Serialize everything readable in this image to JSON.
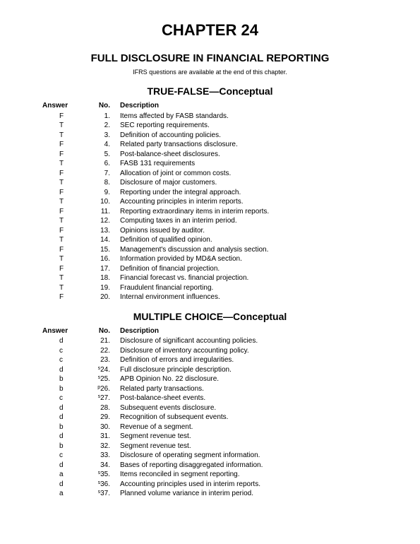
{
  "chapter_title": "CHAPTER 24",
  "subtitle": "FULL DISCLOSURE IN FINANCIAL REPORTING",
  "note": "IFRS questions are available at the end of this chapter.",
  "section1": {
    "title": "TRUE-FALSE—Conceptual",
    "header": {
      "ans": "Answer",
      "no": "No.",
      "desc": "Description"
    },
    "rows": [
      {
        "ans": "F",
        "no": "1.",
        "desc": "Items affected by FASB standards."
      },
      {
        "ans": "T",
        "no": "2.",
        "desc": "SEC reporting requirements."
      },
      {
        "ans": "T",
        "no": "3.",
        "desc": "Definition of accounting policies."
      },
      {
        "ans": "F",
        "no": "4.",
        "desc": "Related party transactions disclosure."
      },
      {
        "ans": "F",
        "no": "5.",
        "desc": "Post-balance-sheet disclosures."
      },
      {
        "ans": "T",
        "no": "6.",
        "desc": "FASB 131 requirements"
      },
      {
        "ans": "F",
        "no": "7.",
        "desc": "Allocation of joint or common costs."
      },
      {
        "ans": "T",
        "no": "8.",
        "desc": "Disclosure of major customers."
      },
      {
        "ans": "F",
        "no": "9.",
        "desc": "Reporting under the integral approach."
      },
      {
        "ans": "T",
        "no": "10.",
        "desc": "Accounting principles in interim reports."
      },
      {
        "ans": "F",
        "no": "11.",
        "desc": "Reporting extraordinary items in interim reports."
      },
      {
        "ans": "T",
        "no": "12.",
        "desc": "Computing taxes in an interim period."
      },
      {
        "ans": "F",
        "no": "13.",
        "desc": "Opinions issued by auditor."
      },
      {
        "ans": "T",
        "no": "14.",
        "desc": "Definition of qualified opinion."
      },
      {
        "ans": "F",
        "no": "15.",
        "desc": "Management's discussion and analysis section."
      },
      {
        "ans": "T",
        "no": "16.",
        "desc": "Information provided by MD&A section."
      },
      {
        "ans": "F",
        "no": "17.",
        "desc": "Definition of financial projection."
      },
      {
        "ans": "T",
        "no": "18.",
        "desc": "Financial forecast vs. financial projection."
      },
      {
        "ans": "T",
        "no": "19.",
        "desc": "Fraudulent financial reporting."
      },
      {
        "ans": "F",
        "no": "20.",
        "desc": "Internal environment influences."
      }
    ]
  },
  "section2": {
    "title": "MULTIPLE CHOICE—Conceptual",
    "header": {
      "ans": "Answer",
      "no": "No.",
      "desc": "Description"
    },
    "rows": [
      {
        "ans": "d",
        "no": "21.",
        "sup": "",
        "desc": "Disclosure of significant accounting policies."
      },
      {
        "ans": "c",
        "no": "22.",
        "sup": "",
        "desc": "Disclosure of inventory accounting policy."
      },
      {
        "ans": "c",
        "no": "23.",
        "sup": "",
        "desc": "Definition of errors and irregularities."
      },
      {
        "ans": "d",
        "no": "24.",
        "sup": "s",
        "desc": "Full disclosure principle description."
      },
      {
        "ans": "b",
        "no": "25.",
        "sup": "s",
        "desc": "APB Opinion No. 22 disclosure."
      },
      {
        "ans": "b",
        "no": "26.",
        "sup": "p",
        "desc": "Related party transactions."
      },
      {
        "ans": "c",
        "no": "27.",
        "sup": "s",
        "desc": "Post-balance-sheet events."
      },
      {
        "ans": "d",
        "no": "28.",
        "sup": "",
        "desc": "Subsequent events disclosure."
      },
      {
        "ans": "d",
        "no": "29.",
        "sup": "",
        "desc": "Recognition of subsequent events."
      },
      {
        "ans": "b",
        "no": "30.",
        "sup": "",
        "desc": "Revenue of a segment."
      },
      {
        "ans": "d",
        "no": "31.",
        "sup": "",
        "desc": "Segment revenue test."
      },
      {
        "ans": "b",
        "no": "32.",
        "sup": "",
        "desc": "Segment revenue test."
      },
      {
        "ans": "c",
        "no": "33.",
        "sup": "",
        "desc": "Disclosure of operating segment information."
      },
      {
        "ans": "d",
        "no": "34.",
        "sup": "",
        "desc": "Bases of reporting disaggregated information."
      },
      {
        "ans": "a",
        "no": "35.",
        "sup": "s",
        "desc": "Items reconciled in segment reporting."
      },
      {
        "ans": "d",
        "no": "36.",
        "sup": "s",
        "desc": "Accounting principles used in interim reports."
      },
      {
        "ans": "a",
        "no": "37.",
        "sup": "s",
        "desc": "Planned volume variance in interim period."
      }
    ]
  }
}
